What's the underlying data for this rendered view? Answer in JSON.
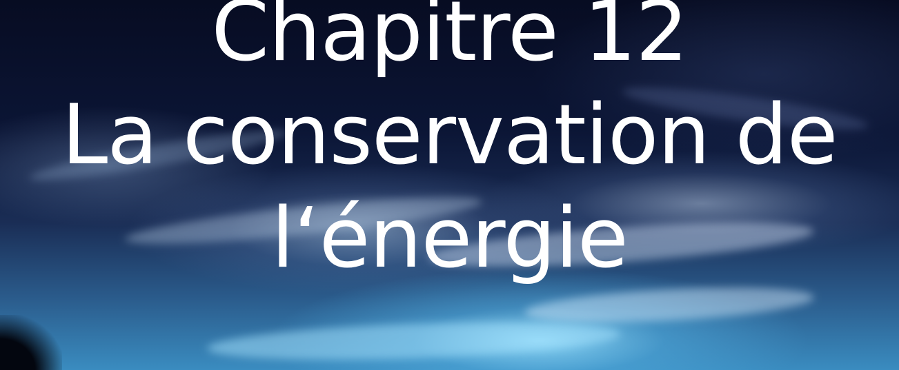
{
  "slide": {
    "title_lines": [
      "Chapitre 12",
      "La conservation de",
      "l‘énergie"
    ]
  },
  "background": {
    "image": "night-sky-clouds",
    "colors": {
      "sky_top": "#070c22",
      "sky_glow": "#3a8cc0",
      "text": "#ffffff"
    }
  }
}
